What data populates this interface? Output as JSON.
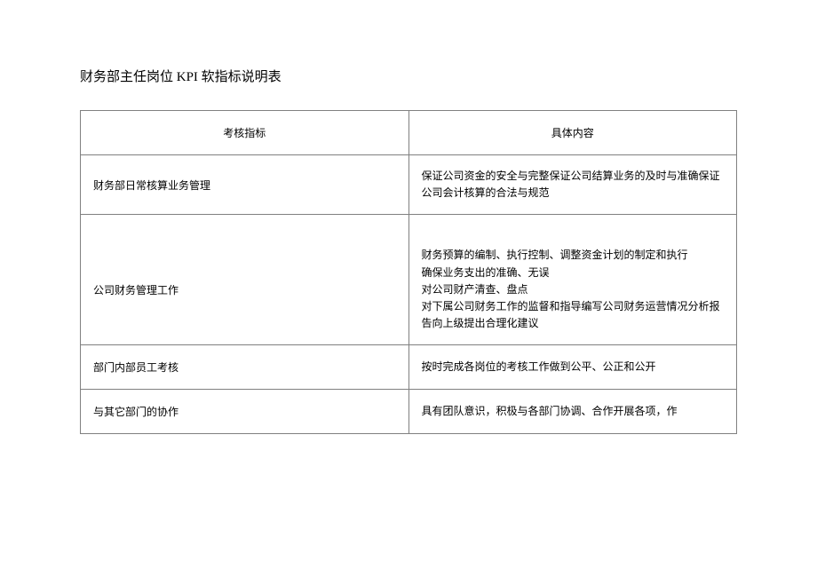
{
  "title": "财务部主任岗位 KPI 软指标说明表",
  "table": {
    "headers": {
      "indicator": "考核指标",
      "content": "具体内容"
    },
    "rows": [
      {
        "indicator": "财务部日常核算业务管理",
        "content_lines": [
          "保证公司资金的安全与完整保证公司结算业务的及时与准确保证公司会计核算的合法与规范"
        ]
      },
      {
        "indicator": "公司财务管理工作",
        "content_lines": [
          "财务预算的编制、执行控制、调整资金计划的制定和执行",
          "确保业务支出的准确、无误",
          "对公司财产清查、盘点",
          "对下属公司财务工作的监督和指导编写公司财务运营情况分析报告向上级提出合理化建议"
        ]
      },
      {
        "indicator": "部门内部员工考核",
        "content_lines": [
          "按时完成各岗位的考核工作做到公平、公正和公开"
        ]
      },
      {
        "indicator": "与其它部门的协作",
        "content_lines": [
          "具有团队意识，积极与各部门协调、合作开展各项，作"
        ]
      }
    ]
  }
}
